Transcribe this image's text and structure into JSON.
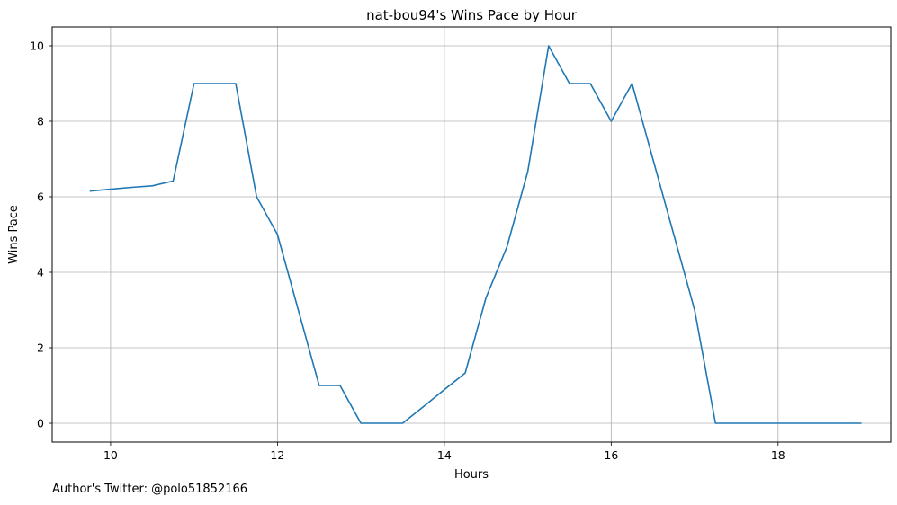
{
  "chart_data": {
    "type": "line",
    "title": "nat-bou94's Wins Pace by Hour",
    "xlabel": "Hours",
    "ylabel": "Wins Pace",
    "xlim": [
      9.3,
      19.35
    ],
    "ylim": [
      -0.5,
      10.5
    ],
    "xticks": [
      10,
      12,
      14,
      16,
      18
    ],
    "yticks": [
      0,
      2,
      4,
      6,
      8,
      10
    ],
    "grid": true,
    "line_color": "#1f77b4",
    "series": [
      {
        "x": [
          9.75,
          10.0,
          10.25,
          10.5,
          10.75,
          11.0,
          11.25,
          11.5,
          11.75,
          12.0,
          12.25,
          12.5,
          12.75,
          13.0,
          13.25,
          13.5,
          13.75,
          14.0,
          14.25,
          14.5,
          14.75,
          15.0,
          15.25,
          15.5,
          15.75,
          16.0,
          16.25,
          16.5,
          16.75,
          17.0,
          17.25,
          17.5,
          17.75,
          18.0,
          18.25,
          18.5,
          18.75,
          19.0
        ],
        "y": [
          6.15,
          6.2,
          6.25,
          6.29,
          6.42,
          9,
          9,
          9,
          6,
          5,
          3,
          1,
          1,
          0,
          0,
          0,
          0.44,
          0.89,
          1.33,
          3.33,
          4.67,
          6.67,
          10,
          9,
          9,
          8,
          9,
          7,
          5,
          3,
          0,
          0,
          0,
          0,
          0,
          0,
          0,
          0
        ]
      }
    ]
  },
  "footer": {
    "author_text": "Author's Twitter: @polo51852166"
  }
}
